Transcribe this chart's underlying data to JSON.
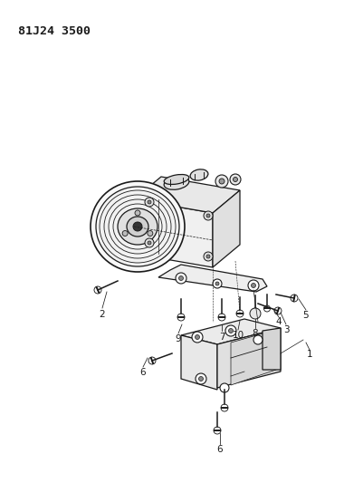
{
  "title": "81J24 3500",
  "bg_color": "#ffffff",
  "line_color": "#1a1a1a",
  "lw": 0.9,
  "title_fontsize": 9.5,
  "label_fontsize": 7.5
}
